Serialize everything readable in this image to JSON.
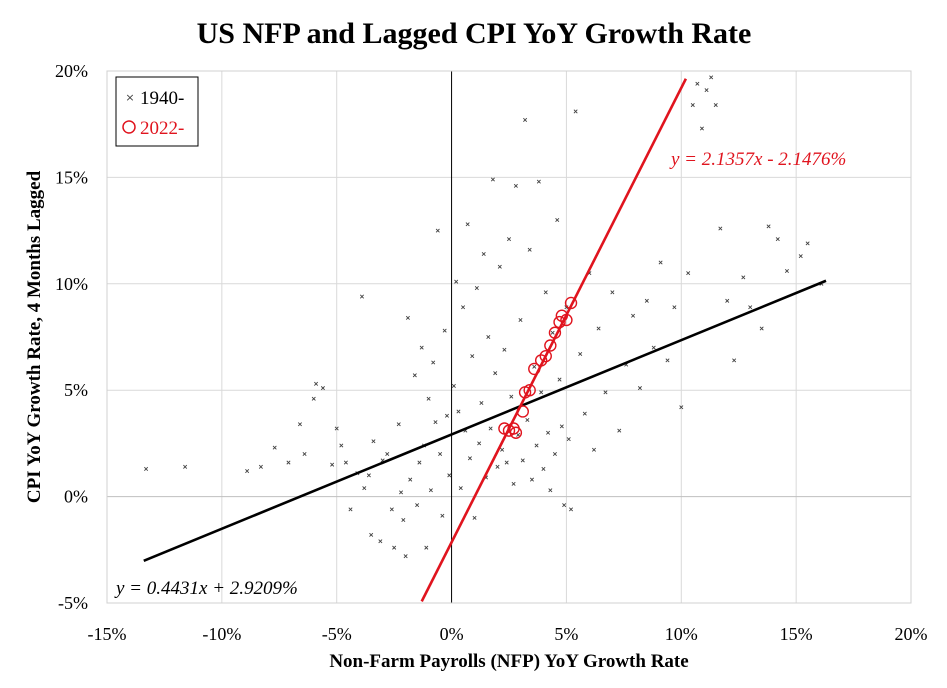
{
  "chart_data": {
    "type": "scatter",
    "title": "US NFP and Lagged CPI YoY Growth Rate",
    "xlabel": "Non-Farm Payrolls (NFP) YoY Growth Rate",
    "ylabel": "CPI YoY Growth Rate, 4 Months Lagged",
    "xlim": [
      -15,
      20
    ],
    "ylim": [
      -5,
      20
    ],
    "x_ticks": [
      -15,
      -10,
      -5,
      0,
      5,
      10,
      15,
      20
    ],
    "y_ticks": [
      -5,
      0,
      5,
      10,
      15,
      20
    ],
    "x_tick_labels": [
      "-15%",
      "-10%",
      "-5%",
      "0%",
      "5%",
      "10%",
      "15%",
      "20%"
    ],
    "y_tick_labels": [
      "-5%",
      "0%",
      "5%",
      "10%",
      "15%",
      "20%"
    ],
    "grid": true,
    "legend": {
      "position": "top-left",
      "entries": [
        {
          "label": "1940-",
          "marker": "x",
          "color": "#404040"
        },
        {
          "label": "2022-",
          "marker": "o",
          "color": "#e0141e"
        }
      ]
    },
    "series": [
      {
        "name": "1940-",
        "marker": "x",
        "color": "#404040",
        "points": [
          [
            -13.3,
            1.3
          ],
          [
            -11.6,
            1.4
          ],
          [
            -8.9,
            1.2
          ],
          [
            -8.3,
            1.4
          ],
          [
            -7.7,
            2.3
          ],
          [
            -7.1,
            1.6
          ],
          [
            -6.6,
            3.4
          ],
          [
            -6.4,
            2.0
          ],
          [
            -6.0,
            4.6
          ],
          [
            -5.9,
            5.3
          ],
          [
            -5.6,
            5.1
          ],
          [
            -5.2,
            1.5
          ],
          [
            -5.0,
            3.2
          ],
          [
            -4.8,
            2.4
          ],
          [
            -4.6,
            1.6
          ],
          [
            -4.4,
            -0.6
          ],
          [
            -4.1,
            1.1
          ],
          [
            -3.9,
            9.4
          ],
          [
            -3.8,
            0.4
          ],
          [
            -3.6,
            1.0
          ],
          [
            -3.5,
            -1.8
          ],
          [
            -3.4,
            2.6
          ],
          [
            -3.1,
            -2.1
          ],
          [
            -3.0,
            1.7
          ],
          [
            -2.8,
            2.0
          ],
          [
            -2.6,
            -0.6
          ],
          [
            -2.5,
            -2.4
          ],
          [
            -2.3,
            3.4
          ],
          [
            -2.2,
            0.2
          ],
          [
            -2.1,
            -1.1
          ],
          [
            -2.0,
            -2.8
          ],
          [
            -1.9,
            8.4
          ],
          [
            -1.8,
            0.8
          ],
          [
            -1.6,
            5.7
          ],
          [
            -1.5,
            -0.4
          ],
          [
            -1.4,
            1.6
          ],
          [
            -1.3,
            7.0
          ],
          [
            -1.2,
            2.4
          ],
          [
            -1.1,
            -2.4
          ],
          [
            -1.0,
            4.6
          ],
          [
            -0.9,
            0.3
          ],
          [
            -0.8,
            6.3
          ],
          [
            -0.7,
            3.5
          ],
          [
            -0.6,
            12.5
          ],
          [
            -0.5,
            2.0
          ],
          [
            -0.4,
            -0.9
          ],
          [
            -0.3,
            7.8
          ],
          [
            -0.2,
            3.8
          ],
          [
            -0.1,
            1.0
          ],
          [
            0.1,
            5.2
          ],
          [
            0.2,
            10.1
          ],
          [
            0.3,
            4.0
          ],
          [
            0.4,
            0.4
          ],
          [
            0.5,
            8.9
          ],
          [
            0.6,
            3.1
          ],
          [
            0.7,
            12.8
          ],
          [
            0.8,
            1.8
          ],
          [
            0.9,
            6.6
          ],
          [
            1.0,
            -1.0
          ],
          [
            1.1,
            9.8
          ],
          [
            1.2,
            2.5
          ],
          [
            1.3,
            4.4
          ],
          [
            1.4,
            11.4
          ],
          [
            1.5,
            0.9
          ],
          [
            1.6,
            7.5
          ],
          [
            1.7,
            3.2
          ],
          [
            1.8,
            14.9
          ],
          [
            1.9,
            5.8
          ],
          [
            2.0,
            1.4
          ],
          [
            2.1,
            10.8
          ],
          [
            2.2,
            2.2
          ],
          [
            2.3,
            6.9
          ],
          [
            2.4,
            1.6
          ],
          [
            2.5,
            12.1
          ],
          [
            2.6,
            4.7
          ],
          [
            2.7,
            0.6
          ],
          [
            2.8,
            14.6
          ],
          [
            2.9,
            2.9
          ],
          [
            3.0,
            8.3
          ],
          [
            3.1,
            1.7
          ],
          [
            3.2,
            17.7
          ],
          [
            3.3,
            3.6
          ],
          [
            3.4,
            11.6
          ],
          [
            3.5,
            0.8
          ],
          [
            3.6,
            6.1
          ],
          [
            3.7,
            2.4
          ],
          [
            3.8,
            14.8
          ],
          [
            3.9,
            4.9
          ],
          [
            4.0,
            1.3
          ],
          [
            4.1,
            9.6
          ],
          [
            4.2,
            3.0
          ],
          [
            4.3,
            0.3
          ],
          [
            4.4,
            7.7
          ],
          [
            4.5,
            2.0
          ],
          [
            4.6,
            13.0
          ],
          [
            4.7,
            5.5
          ],
          [
            4.8,
            3.3
          ],
          [
            4.9,
            -0.4
          ],
          [
            5.0,
            8.9
          ],
          [
            5.1,
            2.7
          ],
          [
            5.2,
            -0.6
          ],
          [
            5.4,
            18.1
          ],
          [
            5.6,
            6.7
          ],
          [
            5.8,
            3.9
          ],
          [
            6.0,
            10.5
          ],
          [
            6.2,
            2.2
          ],
          [
            6.4,
            7.9
          ],
          [
            6.7,
            4.9
          ],
          [
            7.0,
            9.6
          ],
          [
            7.3,
            3.1
          ],
          [
            7.6,
            6.2
          ],
          [
            7.9,
            8.5
          ],
          [
            8.2,
            5.1
          ],
          [
            8.5,
            9.2
          ],
          [
            8.8,
            7.0
          ],
          [
            9.1,
            11.0
          ],
          [
            9.4,
            6.4
          ],
          [
            9.7,
            8.9
          ],
          [
            10.0,
            4.2
          ],
          [
            10.3,
            10.5
          ],
          [
            10.5,
            18.4
          ],
          [
            10.7,
            19.4
          ],
          [
            10.9,
            17.3
          ],
          [
            11.1,
            19.1
          ],
          [
            11.3,
            19.7
          ],
          [
            11.5,
            18.4
          ],
          [
            11.7,
            12.6
          ],
          [
            12.0,
            9.2
          ],
          [
            12.3,
            6.4
          ],
          [
            12.7,
            10.3
          ],
          [
            13.0,
            8.9
          ],
          [
            13.5,
            7.9
          ],
          [
            13.8,
            12.7
          ],
          [
            14.2,
            12.1
          ],
          [
            14.6,
            10.6
          ],
          [
            15.2,
            11.3
          ],
          [
            15.5,
            11.9
          ],
          [
            16.1,
            10.0
          ]
        ]
      },
      {
        "name": "2022-",
        "marker": "o",
        "color": "#e0141e",
        "points": [
          [
            2.3,
            3.2
          ],
          [
            2.5,
            3.1
          ],
          [
            2.7,
            3.2
          ],
          [
            2.8,
            3.0
          ],
          [
            3.1,
            4.0
          ],
          [
            3.2,
            4.9
          ],
          [
            3.4,
            5.0
          ],
          [
            3.6,
            6.0
          ],
          [
            3.9,
            6.4
          ],
          [
            4.1,
            6.6
          ],
          [
            4.3,
            7.1
          ],
          [
            4.5,
            7.7
          ],
          [
            4.7,
            8.2
          ],
          [
            4.8,
            8.5
          ],
          [
            5.0,
            8.3
          ],
          [
            5.2,
            9.1
          ]
        ]
      }
    ],
    "trendlines": [
      {
        "series": "1940-",
        "color": "#000000",
        "slope": 0.4431,
        "intercept": 2.9209,
        "x_range": [
          -13.4,
          16.3
        ],
        "label": "y = 0.4431x + 2.9209%"
      },
      {
        "series": "2022-",
        "color": "#e0141e",
        "slope": 2.1357,
        "intercept": -2.1476,
        "x_range": [
          -1.3,
          10.2
        ],
        "label": "y = 2.1357x - 2.1476%"
      }
    ]
  }
}
